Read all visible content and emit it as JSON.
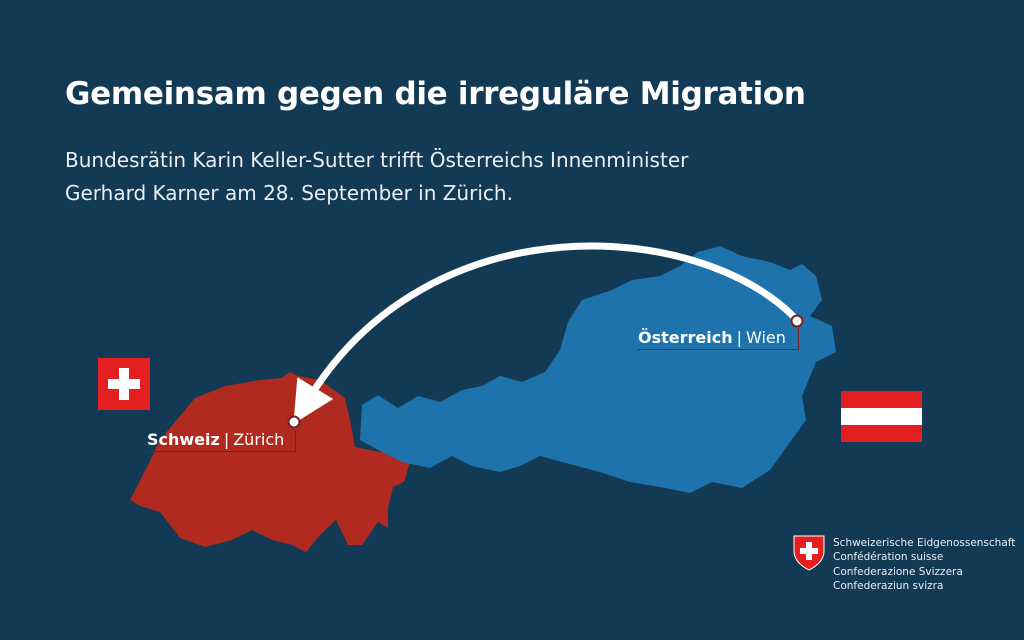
{
  "title": "Gemeinsam gegen die irreguläre Migration",
  "subtitle_lines": [
    "Bundesrätin Karin Keller-Sutter trifft Österreichs Innenminister",
    "Gerhard Karner am 28. September in Zürich."
  ],
  "map": {
    "switzerland": {
      "country": "Schweiz",
      "city": "Zürich",
      "color": "#b02a20"
    },
    "austria": {
      "country": "Österreich",
      "city": "Wien",
      "color": "#1f73ad"
    },
    "arrow": {
      "from": "Wien",
      "to": "Zürich"
    }
  },
  "flags": [
    "swiss-flag",
    "austrian-flag"
  ],
  "logo": {
    "lines": [
      "Schweizerische Eidgenossenschaft",
      "Confédération suisse",
      "Confederazione Svizzera",
      "Confederaziun svizra"
    ]
  },
  "colors": {
    "background": "#123a55",
    "red": "#e3201f"
  }
}
